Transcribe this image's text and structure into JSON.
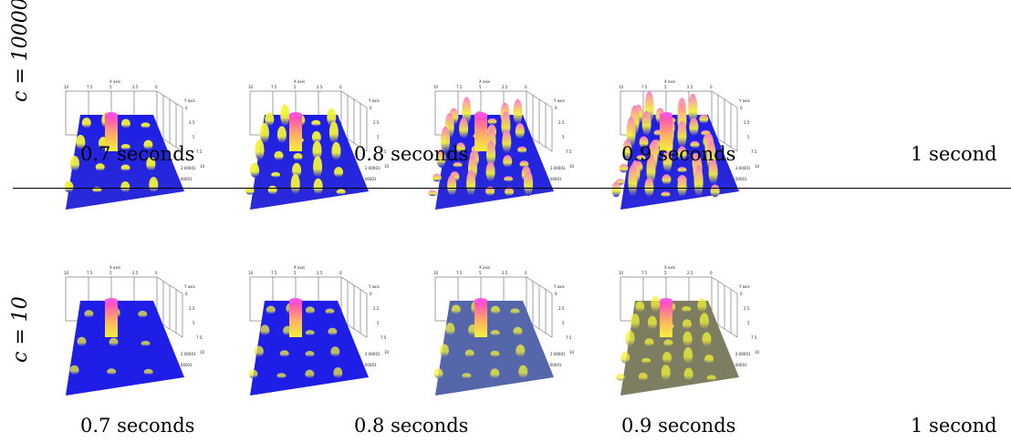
{
  "rows": [
    {
      "label": "c = 10000",
      "panels": [
        {
          "caption": "0.7 seconds",
          "level": 0.15
        },
        {
          "caption": "0.8 seconds",
          "level": 0.45
        },
        {
          "caption": "0.9 seconds",
          "level": 0.75
        },
        {
          "caption": "1 second",
          "level": 1.0
        }
      ]
    },
    {
      "label": "c = 10",
      "panels": [
        {
          "caption": "0.7 seconds",
          "level": 0.05
        },
        {
          "caption": "0.8 seconds",
          "level": 0.15
        },
        {
          "caption": "0.9 seconds",
          "level": 0.3
        },
        {
          "caption": "1 second",
          "level": 0.5
        }
      ]
    }
  ],
  "axes": {
    "x_label": "X axis",
    "y_label": "Y axis",
    "x_ticks": [
      "10",
      "7.5",
      "5",
      "2.5",
      "0"
    ],
    "y_ticks": [
      "0",
      "2.5",
      "5",
      "7.5",
      "10"
    ],
    "z_ticks": [
      "2.00001",
      "2.00001",
      "2"
    ]
  },
  "colors": {
    "surface_low": "#1e1ee6",
    "surface_mid": "#f2f23a",
    "peak": "#ff3fd0"
  }
}
